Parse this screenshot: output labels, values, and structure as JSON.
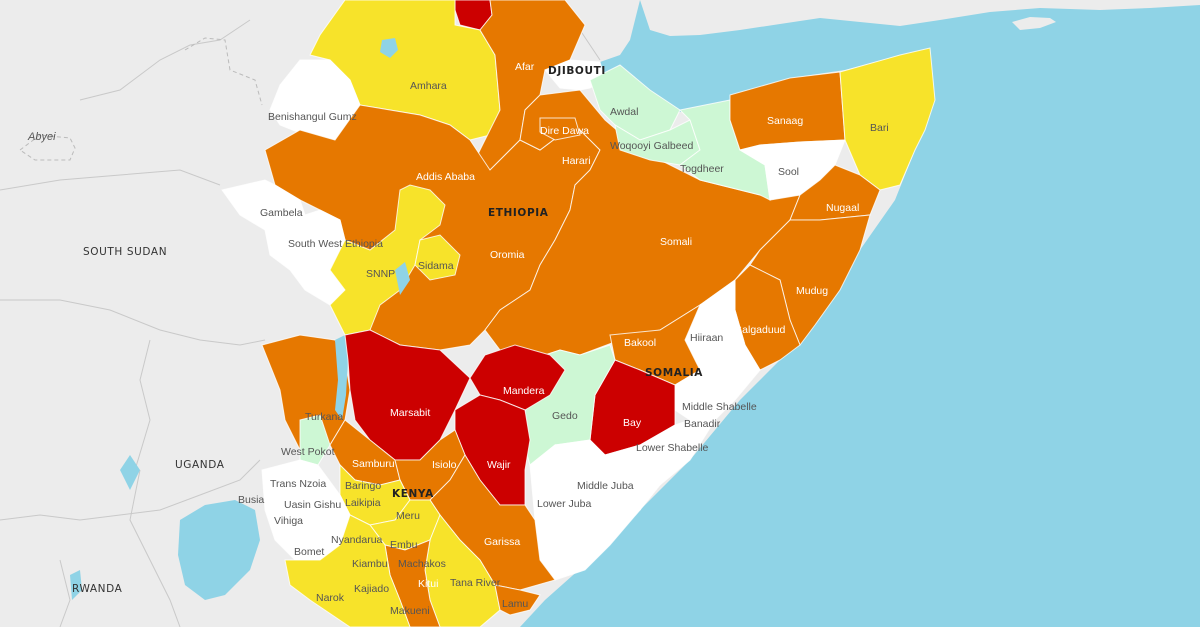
{
  "colors": {
    "ocean": "#8fd3e6",
    "land": "#ececec",
    "severe_red": "#cc0000",
    "orange": "#e67800",
    "yellow": "#f7e32a",
    "light_green": "#cdf7d4",
    "white": "#ffffff"
  },
  "countries": {
    "ethiopia": "ETHIOPIA",
    "somalia": "SOMALIA",
    "kenya": "KENYA",
    "djibouti": "DJIBOUTI",
    "south_sudan": "SOUTH SUDAN",
    "uganda": "UGANDA",
    "rwanda": "RWANDA",
    "abyei": "Abyei"
  },
  "regions": {
    "afar": "Afar",
    "amhara": "Amhara",
    "benishangul": "Benishangul Gumz",
    "addis": "Addis Ababa",
    "gambela": "Gambela",
    "sw_ethiopia": "South West Ethiopia",
    "snnp": "SNNP",
    "sidama": "Sidama",
    "oromia": "Oromia",
    "dire_dawa": "Dire Dawa",
    "harari": "Harari",
    "somali": "Somali",
    "awdal": "Awdal",
    "woqooyi": "Woqooyi Galbeed",
    "togdheer": "Togdheer",
    "sanaag": "Sanaag",
    "sool": "Sool",
    "bari": "Bari",
    "nugaal": "Nugaal",
    "mudug": "Mudug",
    "galgaduud": "Galgaduud",
    "hiiraan": "Hiiraan",
    "bakool": "Bakool",
    "middle_shabelle": "Middle Shabelle",
    "banadir": "Banadir",
    "lower_shabelle": "Lower Shabelle",
    "bay": "Bay",
    "gedo": "Gedo",
    "middle_juba": "Middle Juba",
    "lower_juba": "Lower Juba",
    "turkana": "Turkana",
    "marsabit": "Marsabit",
    "mandera": "Mandera",
    "wajir": "Wajir",
    "west_pokot": "West Pokot",
    "samburu": "Samburu",
    "isiolo": "Isiolo",
    "baringo": "Baringo",
    "trans_nzoia": "Trans Nzoia",
    "uasin_gishu": "Uasin Gishu",
    "laikipia": "Laikipia",
    "meru": "Meru",
    "vihiga": "Vihiga",
    "nyandarua": "Nyandarua",
    "embu": "Embu",
    "bomet": "Bomet",
    "kiambu": "Kiambu",
    "machakos": "Machakos",
    "kajiado": "Kajiado",
    "kitui": "Kitui",
    "tana_river": "Tana River",
    "garissa": "Garissa",
    "narok": "Narok",
    "makueni": "Makueni",
    "lamu": "Lamu",
    "busia": "Busia"
  }
}
